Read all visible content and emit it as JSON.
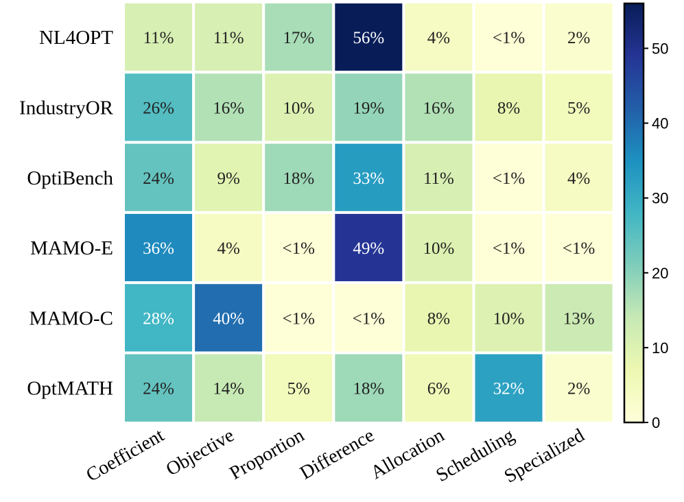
{
  "chart_data": {
    "type": "heatmap",
    "rows": [
      "NL4OPT",
      "IndustryOR",
      "OptiBench",
      "MAMO-E",
      "MAMO-C",
      "OptMATH"
    ],
    "columns": [
      "Coefficient",
      "Objective",
      "Proportion",
      "Difference",
      "Allocation",
      "Scheduling",
      "Specialized"
    ],
    "values": [
      [
        11,
        11,
        17,
        56,
        4,
        0.5,
        2
      ],
      [
        26,
        16,
        10,
        19,
        16,
        8,
        5
      ],
      [
        24,
        9,
        18,
        33,
        11,
        0.5,
        4
      ],
      [
        36,
        4,
        0.5,
        49,
        10,
        0.5,
        0.5
      ],
      [
        28,
        40,
        0.5,
        0.5,
        8,
        10,
        13
      ],
      [
        24,
        14,
        5,
        18,
        6,
        32,
        2
      ]
    ],
    "labels": [
      [
        "11%",
        "11%",
        "17%",
        "56%",
        "4%",
        "<1%",
        "2%"
      ],
      [
        "26%",
        "16%",
        "10%",
        "19%",
        "16%",
        "8%",
        "5%"
      ],
      [
        "24%",
        "9%",
        "18%",
        "33%",
        "11%",
        "<1%",
        "4%"
      ],
      [
        "36%",
        "4%",
        "<1%",
        "49%",
        "10%",
        "<1%",
        "<1%"
      ],
      [
        "28%",
        "40%",
        "<1%",
        "<1%",
        "8%",
        "10%",
        "13%"
      ],
      [
        "24%",
        "14%",
        "5%",
        "18%",
        "6%",
        "32%",
        "2%"
      ]
    ],
    "colormap": "YlGnBu",
    "colorbar": {
      "range": [
        0,
        56
      ],
      "ticks": [
        0,
        10,
        20,
        30,
        40,
        50
      ],
      "tick_labels": [
        "0",
        "10",
        "20",
        "30",
        "40",
        "50"
      ]
    },
    "title": "",
    "xlabel": "",
    "ylabel": ""
  }
}
